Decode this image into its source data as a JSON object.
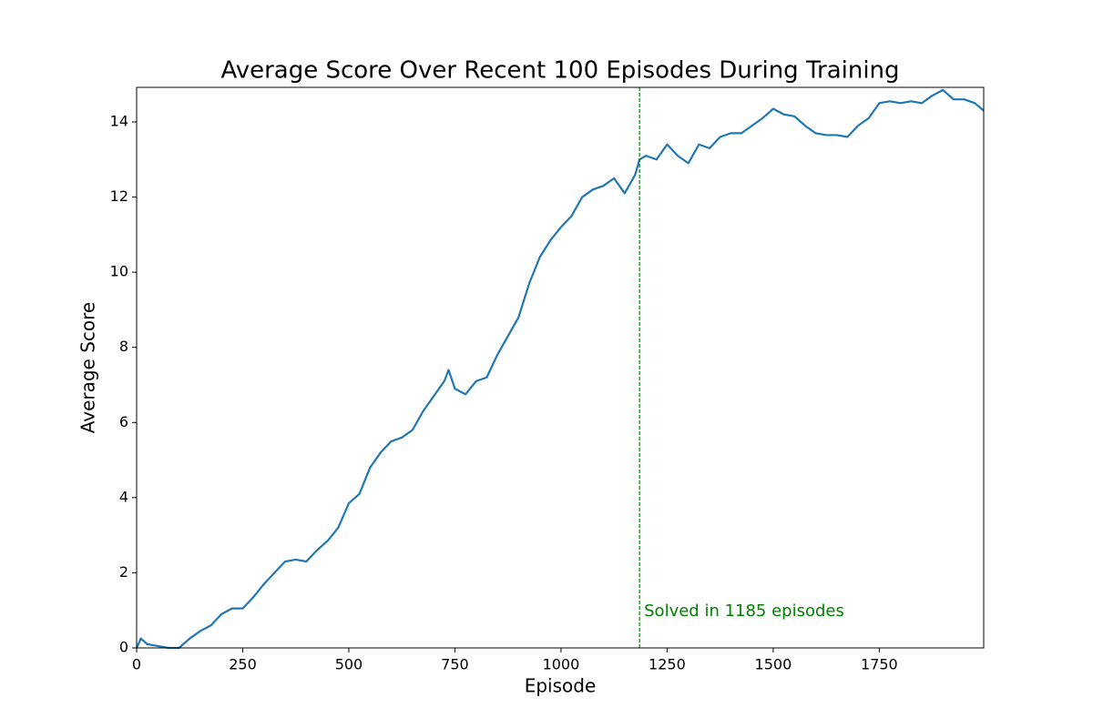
{
  "chart_data": {
    "type": "line",
    "title": "Average Score Over Recent 100 Episodes During Training",
    "x_label": "Episode",
    "y_label": "Average Score",
    "x": [
      0,
      10,
      25,
      50,
      75,
      100,
      125,
      150,
      175,
      200,
      225,
      250,
      275,
      300,
      325,
      350,
      375,
      400,
      425,
      450,
      475,
      500,
      525,
      550,
      575,
      600,
      625,
      650,
      675,
      700,
      725,
      735,
      750,
      775,
      800,
      825,
      850,
      875,
      900,
      925,
      950,
      975,
      1000,
      1025,
      1050,
      1075,
      1100,
      1125,
      1150,
      1175,
      1185,
      1200,
      1225,
      1250,
      1275,
      1300,
      1325,
      1350,
      1375,
      1400,
      1425,
      1450,
      1475,
      1500,
      1525,
      1550,
      1575,
      1600,
      1625,
      1650,
      1675,
      1700,
      1725,
      1750,
      1775,
      1800,
      1825,
      1850,
      1875,
      1900,
      1925,
      1950,
      1975,
      1996
    ],
    "series": [
      {
        "color": "#1f77b4",
        "values": [
          0,
          0.25,
          0.1,
          0.05,
          0,
          0,
          0.25,
          0.45,
          0.6,
          0.9,
          1.05,
          1.05,
          1.35,
          1.7,
          2.0,
          2.3,
          2.35,
          2.3,
          2.6,
          2.85,
          3.2,
          3.85,
          4.1,
          4.8,
          5.2,
          5.5,
          5.6,
          5.8,
          6.3,
          6.7,
          7.1,
          7.4,
          6.9,
          6.75,
          7.1,
          7.2,
          7.8,
          8.3,
          8.8,
          9.7,
          10.4,
          10.85,
          11.2,
          11.5,
          12.0,
          12.2,
          12.3,
          12.5,
          12.1,
          12.6,
          13.0,
          13.1,
          13.0,
          13.4,
          13.1,
          12.9,
          13.4,
          13.3,
          13.6,
          13.7,
          13.7,
          13.9,
          14.1,
          14.35,
          14.2,
          14.15,
          13.9,
          13.7,
          13.65,
          13.65,
          13.6,
          13.9,
          14.1,
          14.5,
          14.55,
          14.5,
          14.55,
          14.5,
          14.7,
          14.85,
          14.6,
          14.6,
          14.5,
          14.3
        ]
      }
    ],
    "xlim": [
      0,
      1996
    ],
    "ylim": [
      0,
      14.92
    ],
    "xticks": [
      0,
      250,
      500,
      750,
      1000,
      1250,
      1500,
      1750
    ],
    "yticks": [
      0,
      2,
      4,
      6,
      8,
      10,
      12,
      14
    ],
    "vline": {
      "x": 1185,
      "color": "green",
      "label": "Solved in 1185 episodes"
    }
  }
}
